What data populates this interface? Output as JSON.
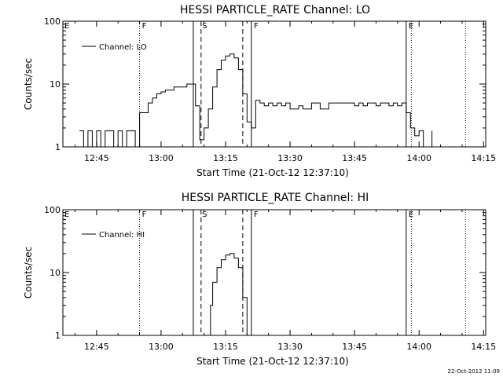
{
  "footer_timestamp": "22-Oct-2012 11:09",
  "chart_data": [
    {
      "type": "line",
      "title": "HESSI PARTICLE_RATE Channel: LO",
      "xlabel": "Start Time (21-Oct-12 12:37:10)",
      "ylabel": "Counts/sec",
      "y_scale": "log",
      "ylim": [
        1,
        100
      ],
      "xlim_minutes": [
        37.2,
        15.5
      ],
      "x_tick_labels": [
        "12:45",
        "13:00",
        "13:15",
        "13:30",
        "13:45",
        "14:00",
        "14:15"
      ],
      "y_tick_labels": [
        "1",
        "10",
        "100"
      ],
      "legend": {
        "label": "Channel: LO",
        "position": "top-left"
      },
      "event_labels": [
        {
          "label": "E",
          "time": "12:37"
        },
        {
          "label": "F",
          "time": "12:55"
        },
        {
          "label": "S",
          "time": "13:09"
        },
        {
          "label": "F",
          "time": "13:21"
        },
        {
          "label": "E",
          "time": "13:57"
        }
      ],
      "series": [
        {
          "x_time": [
            "12:41",
            "12:42",
            "12:43",
            "12:44",
            "12:45",
            "12:46",
            "12:47",
            "12:48",
            "12:49",
            "12:50",
            "12:51",
            "12:52",
            "12:53",
            "12:54",
            "12:55",
            "12:56",
            "12:57",
            "12:58",
            "12:59",
            "13:00",
            "13:01",
            "13:02",
            "13:03",
            "13:04",
            "13:05",
            "13:06",
            "13:07",
            "13:08",
            "13:09",
            "13:10",
            "13:11",
            "13:12",
            "13:13",
            "13:14",
            "13:15",
            "13:16",
            "13:17",
            "13:18",
            "13:19",
            "13:20",
            "13:21",
            "13:22",
            "13:23",
            "13:24",
            "13:25",
            "13:26",
            "13:27",
            "13:28",
            "13:29",
            "13:30",
            "13:31",
            "13:32",
            "13:33",
            "13:34",
            "13:35",
            "13:36",
            "13:37",
            "13:38",
            "13:39",
            "13:40",
            "13:41",
            "13:42",
            "13:43",
            "13:44",
            "13:45",
            "13:46",
            "13:47",
            "13:48",
            "13:49",
            "13:50",
            "13:51",
            "13:52",
            "13:53",
            "13:54",
            "13:55",
            "13:56",
            "13:57",
            "13:58",
            "13:59",
            "14:00",
            "14:01",
            "14:02",
            "14:03"
          ],
          "y": [
            1.8,
            1,
            1.8,
            1,
            1.8,
            1,
            1.8,
            1.8,
            1,
            1.8,
            1,
            1.8,
            1.8,
            1,
            3.5,
            3.5,
            5,
            6,
            7,
            7.5,
            8,
            8,
            9,
            9,
            9,
            10,
            10,
            4.5,
            1.3,
            2,
            4,
            9,
            17,
            24,
            28,
            30,
            26,
            17,
            7,
            2.5,
            2,
            5.5,
            5,
            4.5,
            5,
            4.5,
            5,
            4.5,
            5,
            4,
            4,
            4.5,
            4,
            4,
            5,
            5,
            4,
            4,
            5,
            5,
            5,
            5,
            5,
            5,
            4.5,
            5,
            4.5,
            5,
            5,
            4.5,
            5,
            5,
            4.5,
            5,
            4.5,
            5,
            3.5,
            2,
            1.5,
            1.8,
            1,
            1,
            1.8
          ]
        }
      ]
    },
    {
      "type": "line",
      "title": "HESSI PARTICLE_RATE Channel: HI",
      "xlabel": "Start Time (21-Oct-12 12:37:10)",
      "ylabel": "Counts/sec",
      "y_scale": "log",
      "ylim": [
        1,
        100
      ],
      "x_tick_labels": [
        "12:45",
        "13:00",
        "13:15",
        "13:30",
        "13:45",
        "14:00",
        "14:15"
      ],
      "y_tick_labels": [
        "1",
        "10",
        "100"
      ],
      "legend": {
        "label": "Channel: HI",
        "position": "top-left"
      },
      "event_labels": [
        {
          "label": "E",
          "time": "12:37"
        },
        {
          "label": "F",
          "time": "12:55"
        },
        {
          "label": "S",
          "time": "13:09"
        },
        {
          "label": "F",
          "time": "13:21"
        },
        {
          "label": "E",
          "time": "13:57"
        }
      ],
      "series": [
        {
          "x_time": [
            "13:11",
            "13:11.5",
            "13:12",
            "13:13",
            "13:14",
            "13:15",
            "13:16",
            "13:17",
            "13:18",
            "13:19",
            "13:20"
          ],
          "y": [
            1,
            3,
            7,
            12,
            16,
            19,
            20,
            17,
            12,
            4,
            1
          ]
        }
      ]
    }
  ]
}
